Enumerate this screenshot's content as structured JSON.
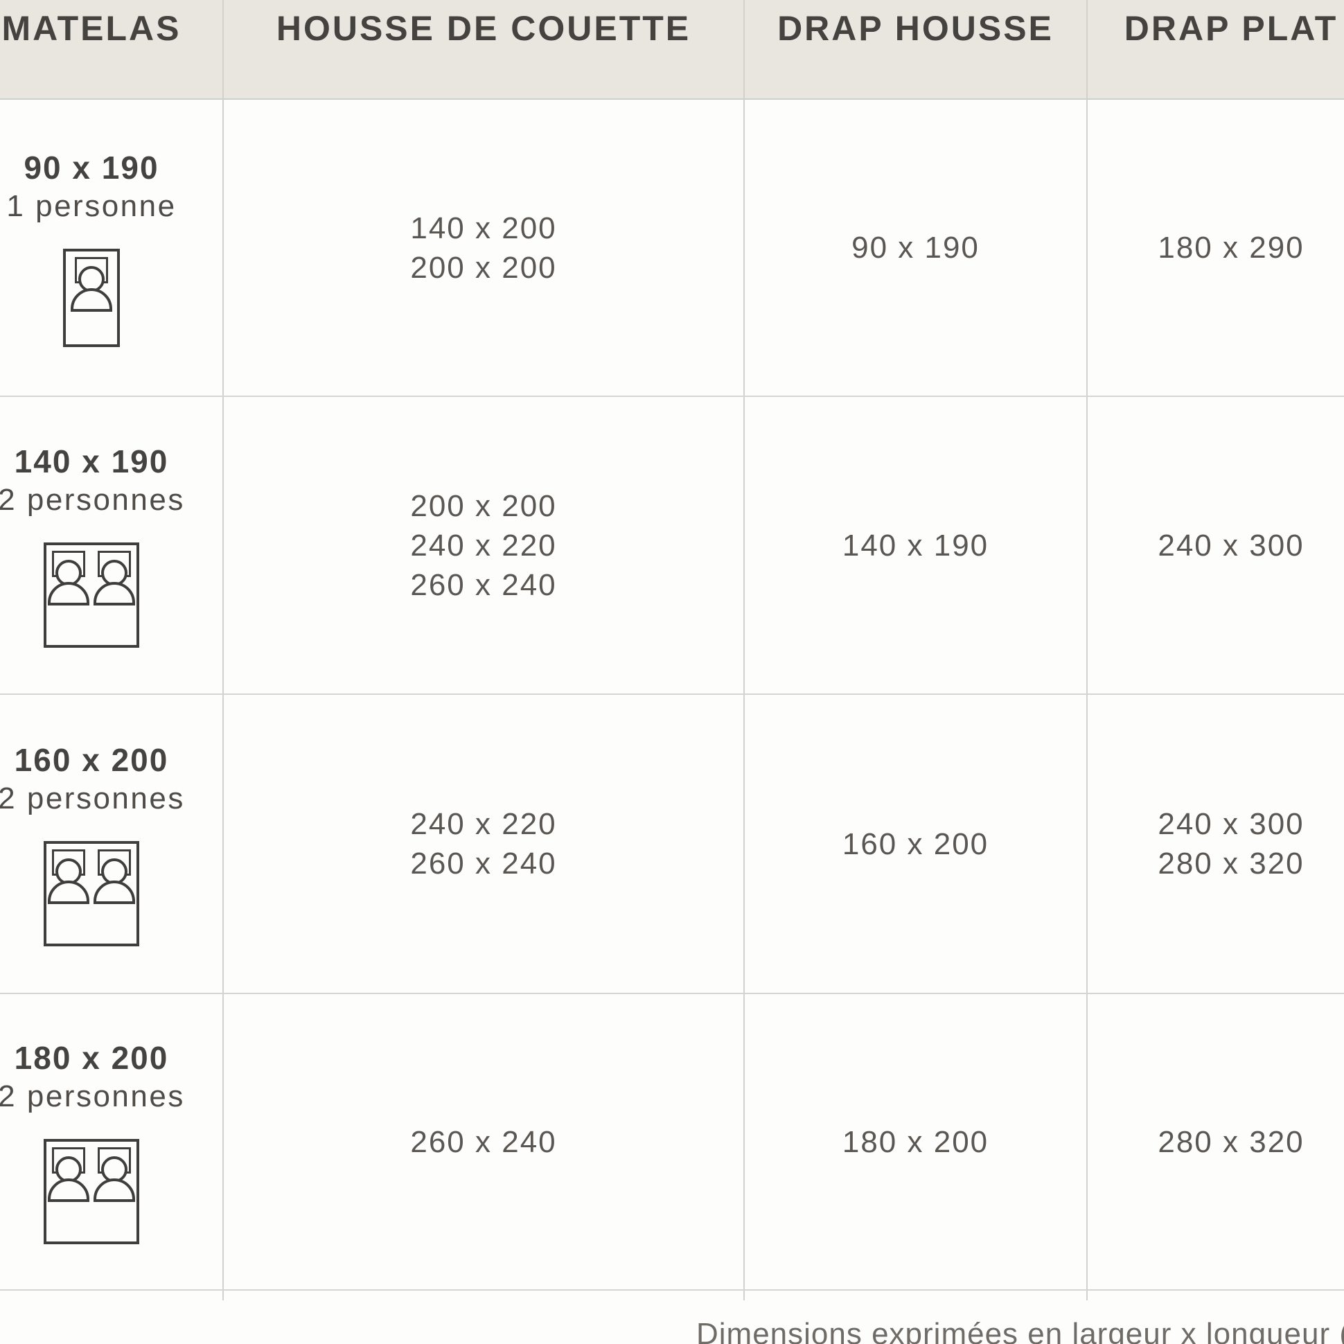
{
  "header": {
    "columns": [
      "MATELAS",
      "HOUSSE DE COUETTE",
      "DRAP HOUSSE",
      "DRAP PLAT"
    ]
  },
  "rows": [
    {
      "mattress_size": "90 x 190",
      "capacity": "1 personne",
      "bed_icon": "single-bed",
      "housse_de_couette": [
        "140 x 200",
        "200 x 200"
      ],
      "drap_housse": [
        "90 x 190"
      ],
      "drap_plat": [
        "180 x 290"
      ]
    },
    {
      "mattress_size": "140 x 190",
      "capacity": "2 personnes",
      "bed_icon": "double-bed",
      "housse_de_couette": [
        "200 x 200",
        "240 x 220",
        "260 x 240"
      ],
      "drap_housse": [
        "140 x 190"
      ],
      "drap_plat": [
        "240 x 300"
      ]
    },
    {
      "mattress_size": "160 x 200",
      "capacity": "2 personnes",
      "bed_icon": "double-bed",
      "housse_de_couette": [
        "240 x 220",
        "260 x 240"
      ],
      "drap_housse": [
        "160 x 200"
      ],
      "drap_plat": [
        "240 x 300",
        "280 x 320"
      ]
    },
    {
      "mattress_size": "180 x 200",
      "capacity": "2 personnes",
      "bed_icon": "double-bed",
      "housse_de_couette": [
        "260 x 240"
      ],
      "drap_housse": [
        "180 x 200"
      ],
      "drap_plat": [
        "280 x 320"
      ]
    }
  ],
  "footer": {
    "note": "Dimensions exprimées en largeur x longueur (cm"
  },
  "colors": {
    "header_bg": "#e9e6e0",
    "header_text": "#454340",
    "body_text": "#5a5753",
    "grid_line": "#d6d5d1",
    "icon_stroke": "#3f3e3b",
    "note_text": "#6f6c67"
  }
}
